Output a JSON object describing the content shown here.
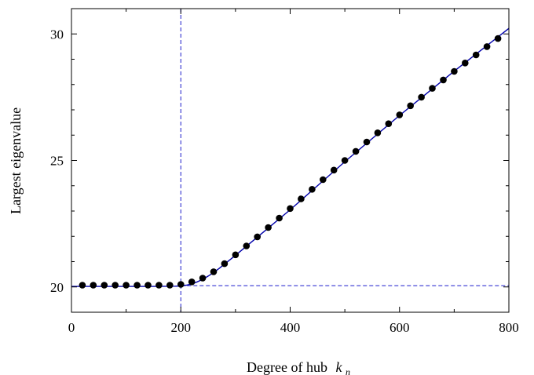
{
  "chart_data": {
    "type": "scatter",
    "title": "",
    "xlabel": "Degree of hub",
    "xlabel_symbol": "k",
    "xlabel_subscript": "n",
    "ylabel": "Largest eigenvalue",
    "xlim": [
      0,
      800
    ],
    "ylim": [
      19.0,
      31.0
    ],
    "xticks": [
      0,
      200,
      400,
      600,
      800
    ],
    "xtick_labels": [
      "0",
      "200",
      "400",
      "600",
      "800"
    ],
    "yticks": [
      20,
      25,
      30
    ],
    "ytick_labels": [
      "20",
      "25",
      "30"
    ],
    "grid": false,
    "legend": "none",
    "colors": {
      "points": "#000000",
      "curve": "#0000aa",
      "reference": "#1a1acc"
    },
    "reference_lines": {
      "vertical_x": 200,
      "horizontal_y": 20.05
    },
    "series": [
      {
        "type": "scatter",
        "x": [
          20,
          40,
          60,
          80,
          100,
          120,
          140,
          160,
          180,
          200,
          220,
          240,
          260,
          280,
          300,
          320,
          340,
          360,
          380,
          400,
          420,
          440,
          460,
          480,
          500,
          520,
          540,
          560,
          580,
          600,
          620,
          640,
          660,
          680,
          700,
          720,
          740,
          760,
          780
        ],
        "y": [
          20.07,
          20.07,
          20.07,
          20.07,
          20.07,
          20.07,
          20.07,
          20.07,
          20.07,
          20.1,
          20.2,
          20.35,
          20.6,
          20.92,
          21.27,
          21.62,
          21.98,
          22.35,
          22.72,
          23.1,
          23.48,
          23.86,
          24.24,
          24.62,
          25.0,
          25.36,
          25.73,
          26.09,
          26.45,
          26.8,
          27.16,
          27.5,
          27.85,
          28.18,
          28.52,
          28.85,
          29.17,
          29.5,
          29.82
        ]
      },
      {
        "type": "line",
        "x": [
          0,
          150,
          190,
          200,
          210,
          220,
          230,
          240,
          250,
          260,
          270,
          280,
          300,
          350,
          400,
          500,
          600,
          700,
          800
        ],
        "y": [
          20.02,
          20.02,
          20.03,
          20.04,
          20.07,
          20.12,
          20.2,
          20.3,
          20.43,
          20.57,
          20.73,
          20.9,
          21.25,
          22.15,
          23.05,
          24.95,
          26.78,
          28.53,
          30.22
        ]
      }
    ]
  }
}
